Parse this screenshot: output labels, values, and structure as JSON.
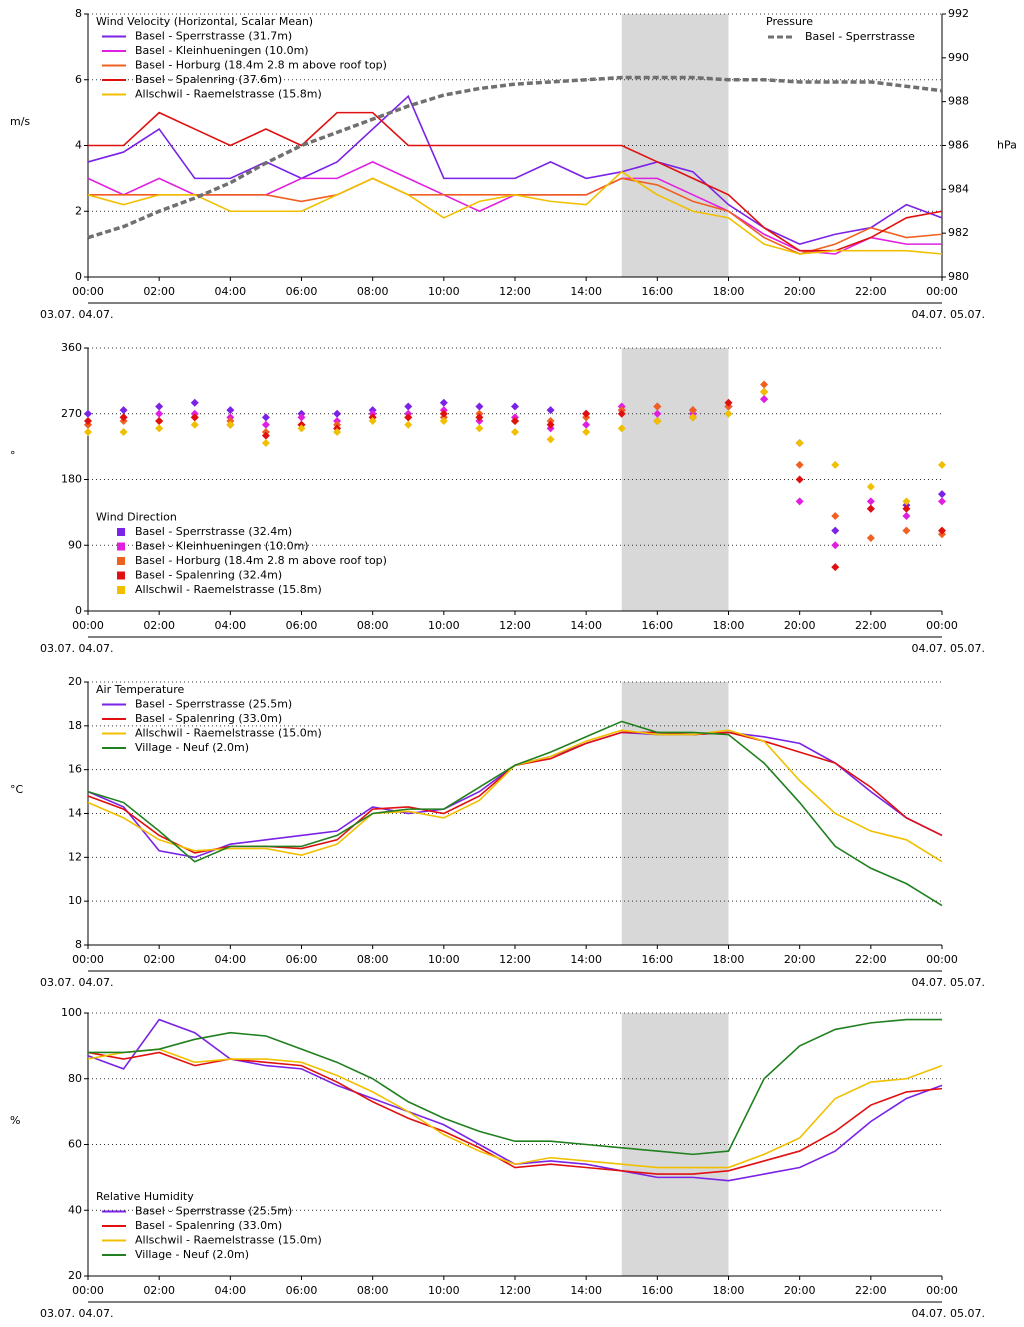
{
  "chart_data": [
    {
      "type": "line",
      "title": "Wind Velocity (Horizontal, Scalar Mean)",
      "y_label": "m/s",
      "legend": "upper left",
      "date_start": "03.07. 04.07.",
      "date_end": "04.07. 05.07.",
      "highlight": [
        15,
        18
      ],
      "x": [
        0,
        1,
        2,
        3,
        4,
        5,
        6,
        7,
        8,
        9,
        10,
        11,
        12,
        13,
        14,
        15,
        16,
        17,
        18,
        19,
        20,
        21,
        22,
        23,
        24
      ],
      "xlim": [
        0,
        24
      ],
      "xticks": [
        {
          "value": 0,
          "label": "00:00"
        },
        {
          "value": 2,
          "label": "02:00"
        },
        {
          "value": 4,
          "label": "04:00"
        },
        {
          "value": 6,
          "label": "06:00"
        },
        {
          "value": 8,
          "label": "08:00"
        },
        {
          "value": 10,
          "label": "10:00"
        },
        {
          "value": 12,
          "label": "12:00"
        },
        {
          "value": 14,
          "label": "14:00"
        },
        {
          "value": 16,
          "label": "16:00"
        },
        {
          "value": 18,
          "label": "18:00"
        },
        {
          "value": 20,
          "label": "20:00"
        },
        {
          "value": 22,
          "label": "22:00"
        },
        {
          "value": 24,
          "label": "00:00"
        }
      ],
      "ylim": [
        0,
        8
      ],
      "yticks": [
        0,
        2,
        4,
        6,
        8
      ],
      "y2_label": "hPa",
      "y2_title": "Pressure",
      "y2lim": [
        980,
        992
      ],
      "y2ticks": [
        980,
        982,
        984,
        986,
        988,
        990,
        992
      ],
      "grid": true,
      "series": [
        {
          "name": "Basel - Sperrstrasse (31.7m)",
          "color": "#7a22e6",
          "values": [
            3.5,
            3.8,
            4.5,
            3,
            3,
            3.5,
            3,
            3.5,
            4.5,
            5.5,
            3,
            3,
            3,
            3.5,
            3,
            3.2,
            3.5,
            3.2,
            2.2,
            1.5,
            1,
            1.3,
            1.5,
            2.2,
            1.8
          ]
        },
        {
          "name": "Basel - Kleinhueningen (10.0m)",
          "color": "#e020e0",
          "values": [
            3,
            2.5,
            3,
            2.5,
            2.5,
            2.5,
            3,
            3,
            3.5,
            3,
            2.5,
            2,
            2.5,
            2.5,
            2.5,
            3,
            3,
            2.5,
            2,
            1.3,
            0.8,
            0.7,
            1.2,
            1,
            1
          ]
        },
        {
          "name": "Basel - Horburg (18.4m 2.8 m above roof top)",
          "color": "#f06020",
          "values": [
            2.5,
            2.5,
            2.5,
            2.5,
            2.5,
            2.5,
            2.3,
            2.5,
            3,
            2.5,
            2.5,
            2.5,
            2.5,
            2.5,
            2.5,
            3,
            2.8,
            2.3,
            2,
            1.2,
            0.7,
            1,
            1.5,
            1.2,
            1.3
          ]
        },
        {
          "name": "Basel - Spalenring (37.6m)",
          "color": "#e01010",
          "values": [
            4,
            4,
            5,
            4.5,
            4,
            4.5,
            4,
            5,
            5,
            4,
            4,
            4,
            4,
            4,
            4,
            4,
            3.5,
            3,
            2.5,
            1.5,
            0.8,
            0.8,
            1.2,
            1.8,
            2
          ]
        },
        {
          "name": "Allschwil - Raemelstrasse (15.8m)",
          "color": "#f0c000",
          "values": [
            2.5,
            2.2,
            2.5,
            2.5,
            2,
            2,
            2,
            2.5,
            3,
            2.5,
            1.8,
            2.3,
            2.5,
            2.3,
            2.2,
            3.2,
            2.5,
            2,
            1.8,
            1,
            0.7,
            0.8,
            0.8,
            0.8,
            0.7
          ]
        },
        {
          "name": "Basel - Sperrstrasse",
          "color": "#707070",
          "axis": "y2",
          "dashed": true,
          "values": [
            981.8,
            982.3,
            983,
            983.6,
            984.3,
            985.2,
            986,
            986.6,
            987.2,
            987.8,
            988.3,
            988.6,
            988.8,
            988.9,
            989,
            989.1,
            989.1,
            989.1,
            989,
            989,
            988.9,
            988.9,
            988.9,
            988.7,
            988.5
          ]
        }
      ]
    },
    {
      "type": "scatter",
      "title": "Wind Direction",
      "y_label": "°",
      "legend": "lower left",
      "date_start": "03.07. 04.07.",
      "date_end": "04.07. 05.07.",
      "highlight": [
        15,
        18
      ],
      "x": [
        0,
        1,
        2,
        3,
        4,
        5,
        6,
        7,
        8,
        9,
        10,
        11,
        12,
        13,
        14,
        15,
        16,
        17,
        18,
        19,
        20,
        21,
        22,
        23,
        24
      ],
      "xlim": [
        0,
        24
      ],
      "xticks": [
        {
          "value": 0,
          "label": "00:00"
        },
        {
          "value": 2,
          "label": "02:00"
        },
        {
          "value": 4,
          "label": "04:00"
        },
        {
          "value": 6,
          "label": "06:00"
        },
        {
          "value": 8,
          "label": "08:00"
        },
        {
          "value": 10,
          "label": "10:00"
        },
        {
          "value": 12,
          "label": "12:00"
        },
        {
          "value": 14,
          "label": "14:00"
        },
        {
          "value": 16,
          "label": "16:00"
        },
        {
          "value": 18,
          "label": "18:00"
        },
        {
          "value": 20,
          "label": "20:00"
        },
        {
          "value": 22,
          "label": "22:00"
        },
        {
          "value": 24,
          "label": "00:00"
        }
      ],
      "ylim": [
        0,
        360
      ],
      "yticks": [
        0,
        90,
        180,
        270,
        360
      ],
      "grid": true,
      "series": [
        {
          "name": "Basel - Sperrstrasse (32.4m)",
          "color": "#7a22e6",
          "values": [
            270,
            275,
            280,
            285,
            275,
            265,
            270,
            270,
            275,
            280,
            285,
            280,
            280,
            275,
            270,
            275,
            280,
            275,
            280,
            290,
            230,
            110,
            140,
            145,
            160
          ]
        },
        {
          "name": "Basel - Kleinhueningen (10.0m)",
          "color": "#e020e0",
          "values": [
            255,
            265,
            270,
            270,
            265,
            255,
            265,
            260,
            270,
            270,
            275,
            260,
            265,
            250,
            255,
            280,
            270,
            270,
            280,
            290,
            150,
            90,
            150,
            130,
            150
          ]
        },
        {
          "name": "Basel - Horburg (18.4m 2.8 m above roof top)",
          "color": "#f06020",
          "values": [
            255,
            260,
            260,
            265,
            260,
            245,
            255,
            255,
            265,
            265,
            265,
            270,
            260,
            260,
            265,
            275,
            280,
            275,
            280,
            310,
            200,
            130,
            100,
            110,
            105
          ]
        },
        {
          "name": "Basel - Spalenring (32.4m)",
          "color": "#e01010",
          "values": [
            260,
            265,
            260,
            265,
            255,
            240,
            255,
            250,
            265,
            265,
            270,
            265,
            260,
            255,
            270,
            270,
            260,
            265,
            285,
            300,
            180,
            60,
            140,
            140,
            110
          ]
        },
        {
          "name": "Allschwil - Raemelstrasse (15.8m)",
          "color": "#f0c000",
          "values": [
            245,
            245,
            250,
            255,
            255,
            230,
            250,
            245,
            260,
            255,
            260,
            250,
            245,
            235,
            245,
            250,
            260,
            265,
            270,
            300,
            230,
            200,
            170,
            150,
            200
          ]
        }
      ]
    },
    {
      "type": "line",
      "title": "Air Temperature",
      "y_label": "°C",
      "legend": "upper left",
      "date_start": "03.07. 04.07.",
      "date_end": "04.07. 05.07.",
      "highlight": [
        15,
        18
      ],
      "x": [
        0,
        1,
        2,
        3,
        4,
        5,
        6,
        7,
        8,
        9,
        10,
        11,
        12,
        13,
        14,
        15,
        16,
        17,
        18,
        19,
        20,
        21,
        22,
        23,
        24
      ],
      "xlim": [
        0,
        24
      ],
      "xticks": [
        {
          "value": 0,
          "label": "00:00"
        },
        {
          "value": 2,
          "label": "02:00"
        },
        {
          "value": 4,
          "label": "04:00"
        },
        {
          "value": 6,
          "label": "06:00"
        },
        {
          "value": 8,
          "label": "08:00"
        },
        {
          "value": 10,
          "label": "10:00"
        },
        {
          "value": 12,
          "label": "12:00"
        },
        {
          "value": 14,
          "label": "14:00"
        },
        {
          "value": 16,
          "label": "16:00"
        },
        {
          "value": 18,
          "label": "18:00"
        },
        {
          "value": 20,
          "label": "20:00"
        },
        {
          "value": 22,
          "label": "22:00"
        },
        {
          "value": 24,
          "label": "00:00"
        }
      ],
      "ylim": [
        8,
        20
      ],
      "yticks": [
        8,
        10,
        12,
        14,
        16,
        18,
        20
      ],
      "grid": true,
      "series": [
        {
          "name": "Basel - Sperrstrasse (25.5m)",
          "color": "#7a22e6",
          "values": [
            15,
            14.3,
            12.3,
            12,
            12.6,
            12.8,
            13,
            13.2,
            14.3,
            14,
            14.2,
            15,
            16.2,
            16.6,
            17.2,
            17.7,
            17.6,
            17.6,
            17.7,
            17.5,
            17.2,
            16.3,
            15,
            13.8,
            13
          ]
        },
        {
          "name": "Basel - Spalenring (33.0m)",
          "color": "#e01010",
          "values": [
            14.8,
            14.2,
            13,
            12.2,
            12.5,
            12.5,
            12.4,
            12.8,
            14.2,
            14.3,
            14,
            14.8,
            16.2,
            16.5,
            17.2,
            17.7,
            17.7,
            17.6,
            17.7,
            17.3,
            16.8,
            16.3,
            15.2,
            13.8,
            13
          ]
        },
        {
          "name": "Allschwil - Raemelstrasse (15.0m)",
          "color": "#f0c000",
          "values": [
            14.5,
            13.8,
            12.8,
            12.3,
            12.4,
            12.4,
            12.1,
            12.6,
            14,
            14.1,
            13.8,
            14.6,
            16.2,
            16.6,
            17.3,
            17.8,
            17.6,
            17.6,
            17.8,
            17.3,
            15.5,
            14,
            13.2,
            12.8,
            11.8
          ]
        },
        {
          "name": "Village - Neuf (2.0m)",
          "color": "#208020",
          "values": [
            15,
            14.5,
            13.2,
            11.8,
            12.5,
            12.5,
            12.5,
            13,
            14,
            14.2,
            14.2,
            15.2,
            16.2,
            16.8,
            17.5,
            18.2,
            17.7,
            17.7,
            17.6,
            16.3,
            14.5,
            12.5,
            11.5,
            10.8,
            9.8
          ]
        }
      ]
    },
    {
      "type": "line",
      "title": "Relative Humidity",
      "y_label": "%",
      "legend": "lower left",
      "date_start": "03.07. 04.07.",
      "date_end": "04.07. 05.07.",
      "highlight": [
        15,
        18
      ],
      "x": [
        0,
        1,
        2,
        3,
        4,
        5,
        6,
        7,
        8,
        9,
        10,
        11,
        12,
        13,
        14,
        15,
        16,
        17,
        18,
        19,
        20,
        21,
        22,
        23,
        24
      ],
      "xlim": [
        0,
        24
      ],
      "xticks": [
        {
          "value": 0,
          "label": "00:00"
        },
        {
          "value": 2,
          "label": "02:00"
        },
        {
          "value": 4,
          "label": "04:00"
        },
        {
          "value": 6,
          "label": "06:00"
        },
        {
          "value": 8,
          "label": "08:00"
        },
        {
          "value": 10,
          "label": "10:00"
        },
        {
          "value": 12,
          "label": "12:00"
        },
        {
          "value": 14,
          "label": "14:00"
        },
        {
          "value": 16,
          "label": "16:00"
        },
        {
          "value": 18,
          "label": "18:00"
        },
        {
          "value": 20,
          "label": "20:00"
        },
        {
          "value": 22,
          "label": "22:00"
        },
        {
          "value": 24,
          "label": "00:00"
        }
      ],
      "ylim": [
        20,
        100
      ],
      "yticks": [
        20,
        40,
        60,
        80,
        100
      ],
      "grid": true,
      "series": [
        {
          "name": "Basel - Sperrstrasse (25.5m)",
          "color": "#7a22e6",
          "values": [
            87,
            83,
            98,
            94,
            86,
            84,
            83,
            78,
            74,
            70,
            66,
            60,
            54,
            55,
            54,
            52,
            50,
            50,
            49,
            51,
            53,
            58,
            67,
            74,
            78
          ]
        },
        {
          "name": "Basel - Spalenring (33.0m)",
          "color": "#e01010",
          "values": [
            88,
            86,
            88,
            84,
            86,
            85,
            84,
            79,
            73,
            68,
            64,
            59,
            53,
            54,
            53,
            52,
            51,
            51,
            52,
            55,
            58,
            64,
            72,
            76,
            77
          ]
        },
        {
          "name": "Allschwil - Raemelstrasse (15.0m)",
          "color": "#f0c000",
          "values": [
            86,
            88,
            89,
            85,
            86,
            86,
            85,
            81,
            76,
            70,
            63,
            58,
            54,
            56,
            55,
            54,
            53,
            53,
            53,
            57,
            62,
            74,
            79,
            80,
            84
          ]
        },
        {
          "name": "Village - Neuf (2.0m)",
          "color": "#208020",
          "values": [
            88,
            88,
            89,
            92,
            94,
            93,
            89,
            85,
            80,
            73,
            68,
            64,
            61,
            61,
            60,
            59,
            58,
            57,
            58,
            80,
            90,
            95,
            97,
            98,
            98
          ]
        }
      ]
    }
  ]
}
